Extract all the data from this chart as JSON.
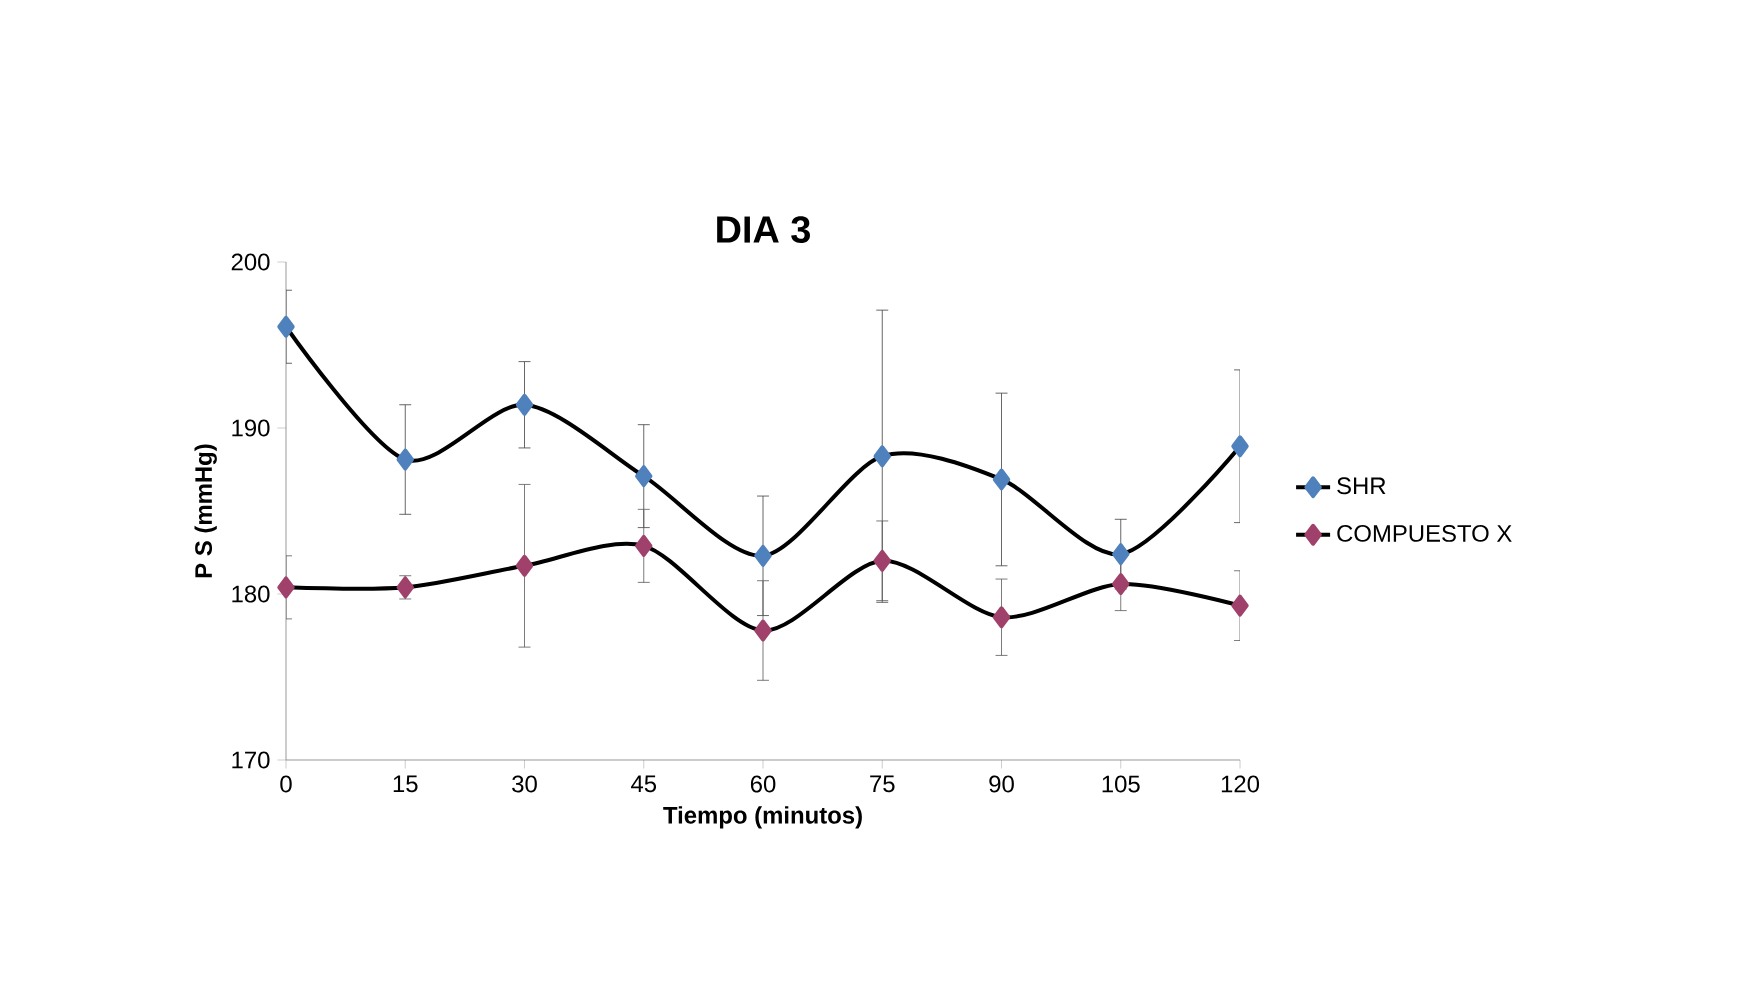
{
  "chart_data": {
    "type": "line",
    "title": "DIA 3",
    "xlabel": "Tiempo (minutos)",
    "ylabel": "P S (mmHg)",
    "x": [
      0,
      15,
      30,
      45,
      60,
      75,
      90,
      105,
      120
    ],
    "series": [
      {
        "name": "SHR",
        "color": "#4f81bd",
        "values": [
          196.1,
          188.1,
          191.4,
          187.1,
          182.3,
          188.3,
          186.9,
          182.4,
          188.9
        ],
        "errors": [
          2.2,
          3.3,
          2.6,
          3.1,
          3.6,
          8.8,
          5.2,
          2.1,
          4.6
        ]
      },
      {
        "name": "COMPUESTO X",
        "color": "#a0416b",
        "values": [
          180.4,
          180.4,
          181.7,
          182.9,
          177.8,
          182.0,
          178.6,
          180.6,
          179.3
        ],
        "errors": [
          1.9,
          0.7,
          4.9,
          2.2,
          3.0,
          2.4,
          2.3,
          1.6,
          2.1
        ]
      }
    ],
    "xlim": [
      0,
      120
    ],
    "xticks": [
      0,
      15,
      30,
      45,
      60,
      75,
      90,
      105,
      120
    ],
    "ylim": [
      170,
      200
    ],
    "yticks": [
      170,
      180,
      190,
      200
    ],
    "grid": false,
    "legend": "right",
    "marker": "diamond",
    "line_style": "solid"
  }
}
